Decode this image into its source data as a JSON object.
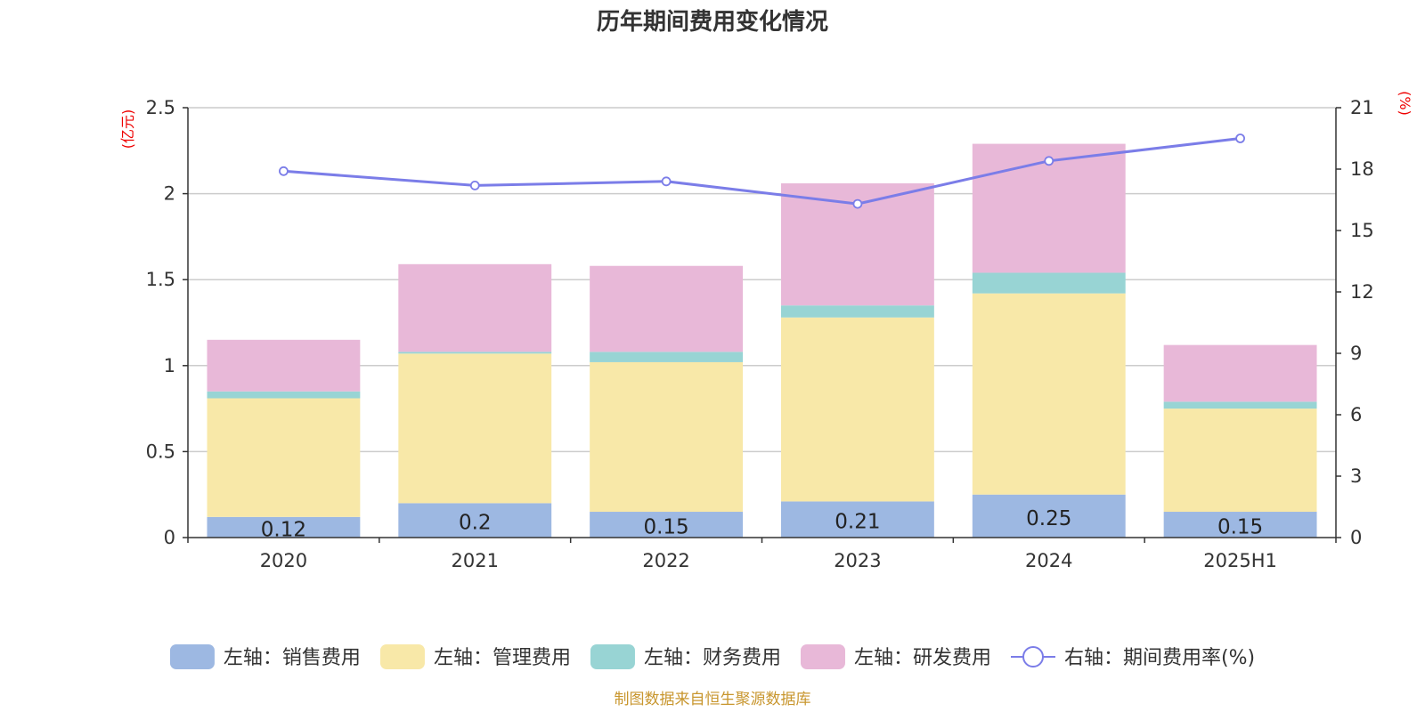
{
  "chart_data": {
    "type": "bar",
    "stacked": true,
    "title": "历年期间费用变化情况",
    "categories": [
      "2020",
      "2021",
      "2022",
      "2023",
      "2024",
      "2025H1"
    ],
    "left_axis": {
      "unit": "(亿元)",
      "ylim": [
        0,
        2.5
      ],
      "ticks": [
        "0",
        "0.5",
        "1",
        "1.5",
        "2",
        "2.5"
      ]
    },
    "right_axis": {
      "unit": "(%)",
      "ylim": [
        0,
        21
      ],
      "ticks": [
        "0",
        "3",
        "6",
        "9",
        "12",
        "15",
        "18",
        "21"
      ]
    },
    "series": [
      {
        "name": "左轴：销售费用",
        "type": "bar",
        "axis": "left",
        "color": "#9db8e2",
        "values": [
          0.12,
          0.2,
          0.15,
          0.21,
          0.25,
          0.15
        ],
        "labels": [
          "0.12",
          "0.2",
          "0.15",
          "0.21",
          "0.25",
          "0.15"
        ]
      },
      {
        "name": "左轴：管理费用",
        "type": "bar",
        "axis": "left",
        "color": "#f8e8a8",
        "values": [
          0.69,
          0.87,
          0.87,
          1.07,
          1.17,
          0.6
        ]
      },
      {
        "name": "左轴：财务费用",
        "type": "bar",
        "axis": "left",
        "color": "#98d4d4",
        "values": [
          0.04,
          0.01,
          0.06,
          0.07,
          0.12,
          0.04
        ]
      },
      {
        "name": "左轴：研发费用",
        "type": "bar",
        "axis": "left",
        "color": "#e8b8d8",
        "values": [
          0.3,
          0.51,
          0.5,
          0.71,
          0.75,
          0.33
        ]
      },
      {
        "name": "右轴：期间费用率(%)",
        "type": "line",
        "axis": "right",
        "color": "#7b7de8",
        "values": [
          17.9,
          17.2,
          17.4,
          16.3,
          18.4,
          19.5
        ]
      }
    ],
    "grid": true,
    "legend": "bottom"
  },
  "source": "制图数据来自恒生聚源数据库"
}
